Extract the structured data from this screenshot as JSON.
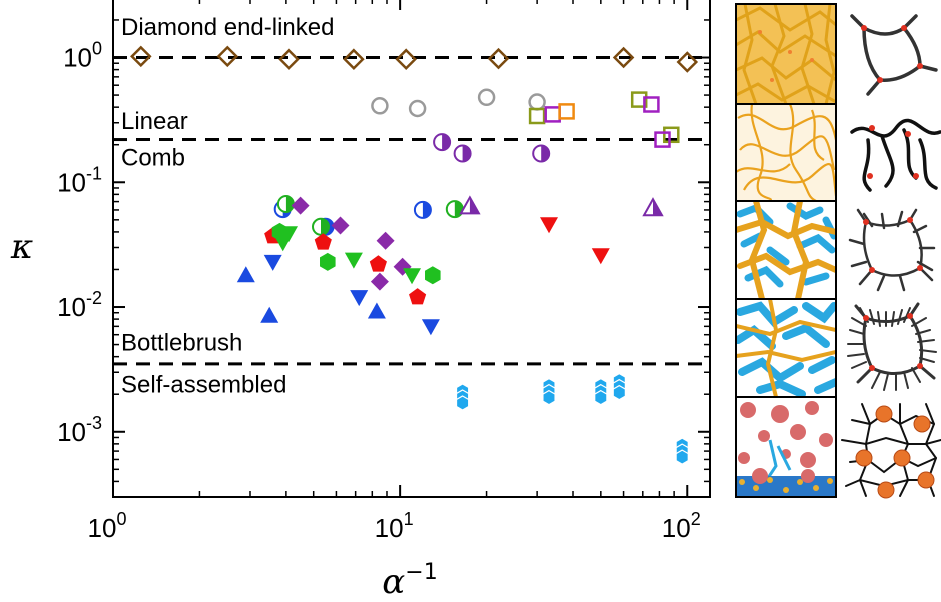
{
  "chart_data": {
    "type": "scatter",
    "x_scale": "log",
    "y_scale": "log",
    "xlim": [
      1,
      120
    ],
    "ylim": [
      0.0003,
      3
    ],
    "xlabel": "α⁻¹",
    "ylabel": "κ",
    "x_ticks": [
      {
        "value": 1,
        "base": "10",
        "exp": "0"
      },
      {
        "value": 10,
        "base": "10",
        "exp": "1"
      },
      {
        "value": 100,
        "base": "10",
        "exp": "2"
      }
    ],
    "y_ticks": [
      {
        "value": 1,
        "base": "10",
        "exp": "0"
      },
      {
        "value": 0.1,
        "base": "10",
        "exp": "-1"
      },
      {
        "value": 0.01,
        "base": "10",
        "exp": "-2"
      },
      {
        "value": 0.001,
        "base": "10",
        "exp": "-3"
      }
    ],
    "dividers": [
      1.0,
      0.22,
      0.0035
    ],
    "regions": [
      {
        "label": "Diamond end-linked",
        "y": 1.75
      },
      {
        "label": "Linear",
        "y": 0.31
      },
      {
        "label": "Comb",
        "y": 0.158
      },
      {
        "label": "Bottlebrush",
        "y": 0.0052
      },
      {
        "label": "Self-assembled",
        "y": 0.0024
      }
    ],
    "series": [
      {
        "marker": "diamond-open",
        "color": "#7a4a10",
        "points": [
          [
            1.25,
            1.02
          ],
          [
            2.5,
            1.02
          ],
          [
            4.1,
            0.97
          ],
          [
            6.9,
            0.97
          ],
          [
            10.5,
            0.97
          ],
          [
            22,
            0.98
          ],
          [
            60,
            1.0
          ],
          [
            100,
            0.92
          ]
        ]
      },
      {
        "marker": "circle-open",
        "color": "#9a9a9a",
        "points": [
          [
            8.5,
            0.41
          ],
          [
            11.5,
            0.39
          ],
          [
            20,
            0.48
          ],
          [
            30,
            0.44
          ]
        ]
      },
      {
        "marker": "square-open",
        "color": "#8a9a1a",
        "points": [
          [
            30,
            0.34
          ],
          [
            68,
            0.46
          ],
          [
            88,
            0.24
          ]
        ]
      },
      {
        "marker": "square-open",
        "color": "#a020c0",
        "points": [
          [
            34,
            0.35
          ],
          [
            75,
            0.42
          ],
          [
            82,
            0.22
          ]
        ]
      },
      {
        "marker": "square-open",
        "color": "#f08a10",
        "points": [
          [
            38,
            0.37
          ]
        ]
      },
      {
        "marker": "circle-half",
        "color": "#7a2aa8",
        "points": [
          [
            14,
            0.21
          ],
          [
            16.5,
            0.17
          ],
          [
            31,
            0.17
          ]
        ]
      },
      {
        "marker": "circle-half",
        "color": "#1a4ae0",
        "points": [
          [
            3.9,
            0.061
          ],
          [
            5.5,
            0.044
          ],
          [
            12,
            0.06
          ]
        ]
      },
      {
        "marker": "circle-half",
        "color": "#20b020",
        "points": [
          [
            4,
            0.067
          ],
          [
            5.3,
            0.044
          ],
          [
            15.5,
            0.061
          ]
        ]
      },
      {
        "marker": "triangle-up-half",
        "color": "#7a2aa8",
        "points": [
          [
            17.5,
            0.064
          ],
          [
            76,
            0.062
          ]
        ]
      },
      {
        "marker": "diamond",
        "color": "#8a2aa8",
        "points": [
          [
            4.5,
            0.065
          ],
          [
            6.2,
            0.045
          ],
          [
            8.9,
            0.034
          ],
          [
            8.5,
            0.016
          ],
          [
            10.2,
            0.021
          ]
        ]
      },
      {
        "marker": "pentagon",
        "color": "#ee1010",
        "points": [
          [
            3.6,
            0.037
          ],
          [
            5.4,
            0.033
          ],
          [
            8.4,
            0.022
          ],
          [
            11.5,
            0.012
          ]
        ]
      },
      {
        "marker": "hexagon",
        "color": "#20c020",
        "points": [
          [
            3.8,
            0.04
          ],
          [
            5.6,
            0.023
          ],
          [
            13,
            0.018
          ]
        ]
      },
      {
        "marker": "triangle-down",
        "color": "#20c020",
        "points": [
          [
            3.9,
            0.033
          ],
          [
            4.1,
            0.039
          ],
          [
            6.9,
            0.024
          ],
          [
            11,
            0.018
          ]
        ]
      },
      {
        "marker": "triangle-down",
        "color": "#ee1010",
        "points": [
          [
            33,
            0.046
          ],
          [
            50,
            0.026
          ]
        ]
      },
      {
        "marker": "triangle-down",
        "color": "#1a4ae0",
        "points": [
          [
            3.6,
            0.023
          ],
          [
            7.2,
            0.012
          ],
          [
            12.8,
            0.007
          ]
        ]
      },
      {
        "marker": "triangle-up",
        "color": "#1a4ae0",
        "points": [
          [
            2.9,
            0.018
          ],
          [
            3.5,
            0.0085
          ],
          [
            8.3,
            0.0092
          ]
        ]
      },
      {
        "marker": "hexagon-stack",
        "color": "#20a8ee",
        "points": [
          [
            16.5,
            0.0019
          ],
          [
            33,
            0.0021
          ],
          [
            50,
            0.0021
          ],
          [
            58,
            0.0023
          ],
          [
            96,
            0.0007
          ]
        ]
      }
    ]
  }
}
